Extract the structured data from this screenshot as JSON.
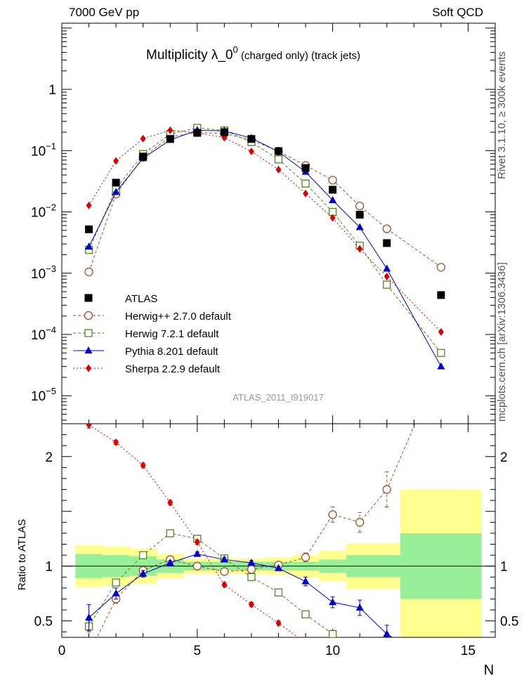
{
  "header": {
    "left": "7000 GeV pp",
    "right": "Soft QCD"
  },
  "side": {
    "upper": "Rivet 3.1.10, ≥ 300k events",
    "lower": "mcplots.cern.ch [arXiv:1306.3436]"
  },
  "chart_data": {
    "type": "scatter",
    "title_main": "Multiplicity  λ_0",
    "title_sup": "0",
    "title_suffix": " (charged only) (track jets)",
    "watermark": "ATLAS_2011_I919017",
    "xlabel": "N",
    "ratio_ylabel": "Ratio to ATLAS",
    "xlim": [
      0,
      16
    ],
    "ylim_log": [
      3.5e-06,
      12
    ],
    "ratio_ylim": [
      0.35,
      2.3
    ],
    "x_ticks": [
      0,
      5,
      10,
      15
    ],
    "y_ticks": [
      {
        "v": 1,
        "l": "1",
        "e": ""
      },
      {
        "v": 0.1,
        "l": "10",
        "e": "−1"
      },
      {
        "v": 0.01,
        "l": "10",
        "e": "−2"
      },
      {
        "v": 0.001,
        "l": "10",
        "e": "−3"
      },
      {
        "v": 0.0001,
        "l": "10",
        "e": "−4"
      },
      {
        "v": 1e-05,
        "l": "10",
        "e": "−5"
      }
    ],
    "ratio_ticks": [
      {
        "v": 0.5,
        "l": "0.5"
      },
      {
        "v": 1,
        "l": "1"
      },
      {
        "v": 2,
        "l": "2"
      }
    ],
    "x": [
      1,
      2,
      3,
      4,
      5,
      6,
      7,
      8,
      9,
      10,
      11,
      12,
      14
    ],
    "data": {
      "name": "ATLAS",
      "values": [
        0.0052,
        0.03,
        0.08,
        0.155,
        0.195,
        0.2,
        0.155,
        0.098,
        0.052,
        0.023,
        0.009,
        0.0031,
        0.00044
      ],
      "band_inner": [
        0.11,
        0.1,
        0.09,
        0.06,
        0.04,
        0.04,
        0.04,
        0.04,
        0.04,
        0.06,
        0.08,
        0.1,
        0.3
      ],
      "band_outer": [
        0.19,
        0.18,
        0.16,
        0.11,
        0.07,
        0.07,
        0.07,
        0.08,
        0.1,
        0.14,
        0.18,
        0.21,
        0.7
      ]
    },
    "series": [
      {
        "name": "Herwig++ 2.7.0 default",
        "color": "#a0522d",
        "marker": "open-circle",
        "dash": "4,3",
        "values": [
          0.00105,
          0.0195,
          0.078,
          0.168,
          0.198,
          0.19,
          0.149,
          0.098,
          0.057,
          0.033,
          0.0125,
          0.0053,
          0.00125
        ],
        "ratio": [
          0.2,
          0.7,
          0.96,
          1.06,
          1.0,
          0.95,
          0.97,
          1.01,
          1.08,
          1.47,
          1.4,
          1.7,
          2.85
        ],
        "ratio_err": [
          0,
          0.04,
          0.03,
          0.02,
          0.02,
          0.02,
          0.02,
          0.02,
          0.04,
          0.07,
          0.09,
          0.16,
          0
        ]
      },
      {
        "name": "Herwig 7.2.1 default",
        "color": "#4a8a1c",
        "marker": "open-square",
        "dash": "4,3",
        "values": [
          0.0024,
          0.024,
          0.088,
          0.186,
          0.235,
          0.213,
          0.138,
          0.072,
          0.029,
          0.01,
          0.0028,
          0.00065,
          5e-05
        ],
        "ratio": [
          0.45,
          0.85,
          1.1,
          1.3,
          1.25,
          1.07,
          0.9,
          0.76,
          0.56,
          0.38,
          0.25,
          0.15,
          0.05
        ],
        "ratio_err": [
          0.05,
          0.03,
          0.02,
          0.02,
          0.02,
          0.02,
          0.02,
          0.02,
          0.02,
          0.02,
          0.02,
          0.02,
          0
        ]
      },
      {
        "name": "Pythia 8.201 default",
        "color": "#0000cc",
        "marker": "triangle",
        "dash": "",
        "values": [
          0.0027,
          0.021,
          0.075,
          0.149,
          0.215,
          0.21,
          0.16,
          0.096,
          0.045,
          0.0155,
          0.0056,
          0.00118,
          3e-05
        ],
        "ratio": [
          0.53,
          0.75,
          0.93,
          1.03,
          1.11,
          1.06,
          1.03,
          0.98,
          0.86,
          0.67,
          0.62,
          0.38,
          0.07
        ],
        "ratio_err": [
          0.12,
          0.05,
          0.03,
          0.02,
          0.02,
          0.02,
          0.02,
          0.02,
          0.04,
          0.05,
          0.07,
          0.08,
          0
        ]
      },
      {
        "name": "Sherpa 2.2.9 default",
        "color": "#dd0000",
        "marker": "diamond",
        "dash": "2,3",
        "values": [
          0.0128,
          0.068,
          0.157,
          0.215,
          0.195,
          0.163,
          0.097,
          0.049,
          0.02,
          0.008,
          0.0025,
          0.00088,
          0.00011
        ],
        "ratio": [
          2.29,
          2.13,
          1.92,
          1.58,
          1.22,
          0.83,
          0.65,
          0.48,
          0.3,
          0.2,
          0.12,
          0.07,
          0.03
        ],
        "ratio_err": [
          0.03,
          0.02,
          0.02,
          0.02,
          0.02,
          0.02,
          0.02,
          0.02,
          0.02,
          0.02,
          0.02,
          0.02,
          0
        ]
      }
    ]
  }
}
